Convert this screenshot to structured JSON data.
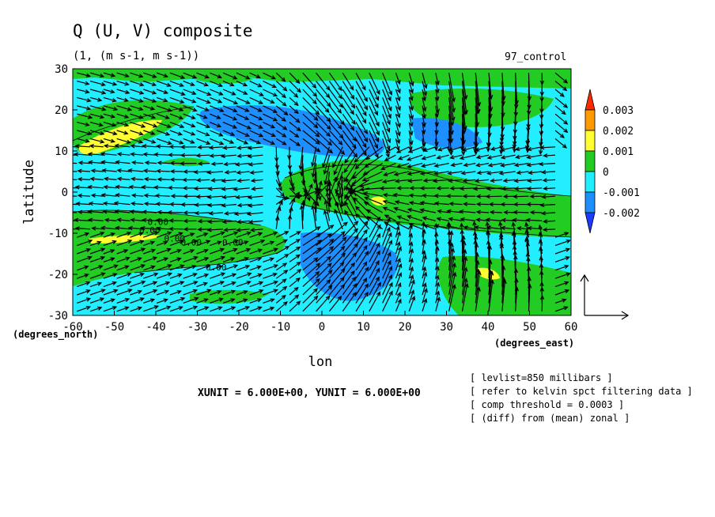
{
  "chart_data": {
    "type": "heatmap",
    "title": "Q (U, V) composite",
    "subtitle": "(1, (m s-1, m s-1))",
    "corner_label": "97_control",
    "xlabel": "lon",
    "ylabel": "latitude",
    "x_unit_label": "(degrees_east)",
    "y_unit_label": "(degrees_north)",
    "xlim": [
      -60,
      60
    ],
    "ylim": [
      -30,
      30
    ],
    "x_ticks": [
      "-60",
      "-50",
      "-40",
      "-30",
      "-20",
      "-10",
      "0",
      "10",
      "20",
      "30",
      "40",
      "50",
      "60"
    ],
    "y_ticks": [
      "30",
      "20",
      "10",
      "0",
      "-10",
      "-20",
      "-30"
    ],
    "colorbar": {
      "labels": [
        "0.003",
        "0.002",
        "0.001",
        "0",
        "-0.001",
        "-0.002"
      ],
      "colors": [
        "#ff2a00",
        "#ff9a00",
        "#ffff33",
        "#22cc22",
        "#22eeff",
        "#1e8fff",
        "#1a3cff"
      ]
    },
    "contour_labels": [
      "0.00",
      "0.00",
      "0.00",
      "0.00",
      "0.00",
      "0.00"
    ],
    "grid": false,
    "legend": "right",
    "vector_overlay": "wind vectors (U, V)"
  },
  "units_line": "XUNIT = 6.000E+00, YUNIT = 6.000E+00",
  "info_lines": [
    "[ levlist=850 millibars ]",
    "[ refer to kelvin spct filtering data ]",
    "[ comp threshold = 0.0003 ]",
    "[ (diff) from (mean) zonal ]"
  ]
}
